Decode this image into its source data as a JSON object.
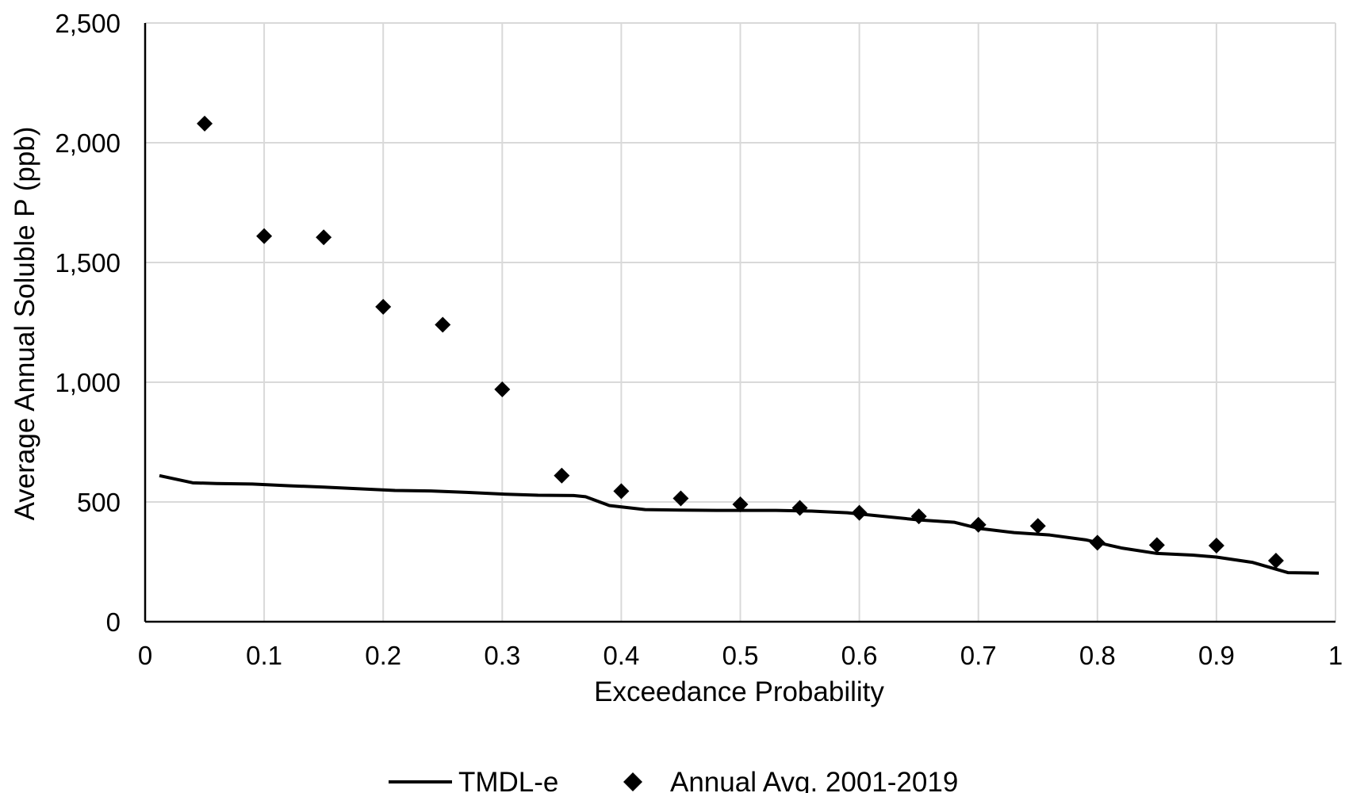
{
  "chart_data": {
    "type": "scatter",
    "title": "",
    "xlabel": "Exceedance Probability",
    "ylabel": "Average Annual Soluble P (ppb)",
    "xlim": [
      0,
      1
    ],
    "ylim": [
      0,
      2500
    ],
    "x_ticks": [
      0,
      0.1,
      0.2,
      0.3,
      0.4,
      0.5,
      0.6,
      0.7,
      0.8,
      0.9,
      1
    ],
    "x_tick_labels": [
      "0",
      "0.1",
      "0.2",
      "0.3",
      "0.4",
      "0.5",
      "0.6",
      "0.7",
      "0.8",
      "0.9",
      "1"
    ],
    "y_ticks": [
      0,
      500,
      1000,
      1500,
      2000,
      2500
    ],
    "y_tick_labels": [
      "0",
      "500",
      "1,000",
      "1,500",
      "2,000",
      "2,500"
    ],
    "grid": true,
    "legend_position": "bottom",
    "series": [
      {
        "name": "TMDL-e",
        "kind": "line",
        "color": "#000000",
        "x": [
          0.012,
          0.04,
          0.06,
          0.09,
          0.12,
          0.15,
          0.18,
          0.21,
          0.24,
          0.27,
          0.3,
          0.33,
          0.36,
          0.37,
          0.39,
          0.42,
          0.45,
          0.48,
          0.5,
          0.53,
          0.56,
          0.59,
          0.62,
          0.65,
          0.68,
          0.7,
          0.73,
          0.76,
          0.79,
          0.82,
          0.85,
          0.88,
          0.9,
          0.93,
          0.96,
          0.986
        ],
        "y": [
          610,
          580,
          577,
          575,
          568,
          562,
          555,
          548,
          546,
          540,
          533,
          528,
          527,
          522,
          485,
          468,
          466,
          465,
          465,
          465,
          462,
          455,
          440,
          425,
          415,
          390,
          372,
          362,
          342,
          308,
          285,
          278,
          270,
          248,
          205,
          203
        ]
      },
      {
        "name": "Annual Avg. 2001-2019",
        "kind": "scatter",
        "marker": "diamond",
        "color": "#000000",
        "x": [
          0.05,
          0.1,
          0.15,
          0.2,
          0.25,
          0.3,
          0.35,
          0.4,
          0.45,
          0.5,
          0.55,
          0.6,
          0.65,
          0.7,
          0.75,
          0.8,
          0.85,
          0.9,
          0.95
        ],
        "y": [
          2080,
          1610,
          1605,
          1315,
          1240,
          970,
          610,
          545,
          515,
          490,
          475,
          455,
          440,
          405,
          400,
          330,
          320,
          318,
          255
        ]
      }
    ]
  }
}
